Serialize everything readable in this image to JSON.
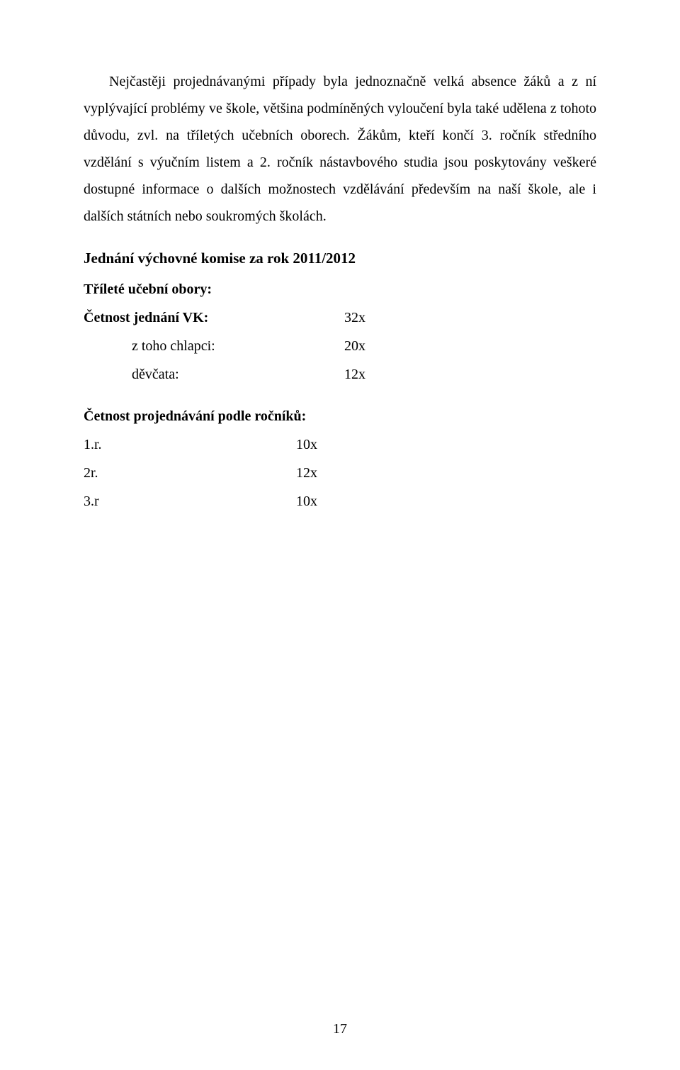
{
  "paragraph": "Nejčastěji projednávanými případy byla jednoznačně velká absence žáků a z ní vyplývající problémy ve škole, většina podmíněných vyloučení byla také udělena z tohoto důvodu, zvl. na tříletých učebních oborech. Žákům, kteří končí 3. ročník středního vzdělání s výučním listem a 2. ročník nástavbového studia jsou poskytovány veškeré dostupné informace o dalších možnostech vzdělávání především na naší škole, ale i dalších státních nebo soukromých školách.",
  "heading": "Jednání výchovné komise za rok 2011/2012",
  "section1": {
    "title": "Tříleté učební obory:",
    "rows": [
      {
        "label": "Četnost jednání VK:",
        "value": "32x",
        "bold": true,
        "indent": false
      },
      {
        "label": "z toho chlapci:",
        "value": "20x",
        "bold": false,
        "indent": true
      },
      {
        "label": "děvčata:",
        "value": "12x",
        "bold": false,
        "indent": true
      }
    ]
  },
  "section2": {
    "title": "Četnost projednávání podle ročníků:",
    "rows": [
      {
        "label": "1.r.",
        "value": "10x"
      },
      {
        "label": "2r.",
        "value": "12x"
      },
      {
        "label": "3.r",
        "value": "10x"
      }
    ]
  },
  "page_number": "17"
}
